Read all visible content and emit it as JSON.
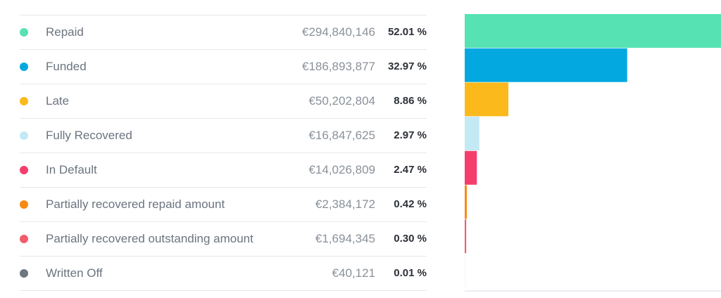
{
  "chart_data": {
    "type": "bar",
    "orientation": "horizontal",
    "title": "",
    "xlabel": "",
    "ylabel": "",
    "grid": false,
    "series": [
      {
        "label": "Repaid",
        "amount": "€294,840,146",
        "percent_label": "52.01 %",
        "value": 52.01,
        "color": "#57e2b3"
      },
      {
        "label": "Funded",
        "amount": "€186,893,877",
        "percent_label": "32.97 %",
        "value": 32.97,
        "color": "#03a8e0"
      },
      {
        "label": "Late",
        "amount": "€50,202,804",
        "percent_label": "8.86 %",
        "value": 8.86,
        "color": "#fbb91c"
      },
      {
        "label": "Fully Recovered",
        "amount": "€16,847,625",
        "percent_label": "2.97 %",
        "value": 2.97,
        "color": "#c3e9f5"
      },
      {
        "label": "In Default",
        "amount": "€14,026,809",
        "percent_label": "2.47 %",
        "value": 2.47,
        "color": "#f53e6e"
      },
      {
        "label": "Partially recovered repaid amount",
        "amount": "€2,384,172",
        "percent_label": "0.42 %",
        "value": 0.42,
        "color": "#f78a12"
      },
      {
        "label": "Partially recovered outstanding amount",
        "amount": "€1,694,345",
        "percent_label": "0.30 %",
        "value": 0.3,
        "color": "#f25c6b"
      },
      {
        "label": "Written Off",
        "amount": "€40,121",
        "percent_label": "0.01 %",
        "value": 0.01,
        "color": "#6f7780"
      }
    ]
  }
}
